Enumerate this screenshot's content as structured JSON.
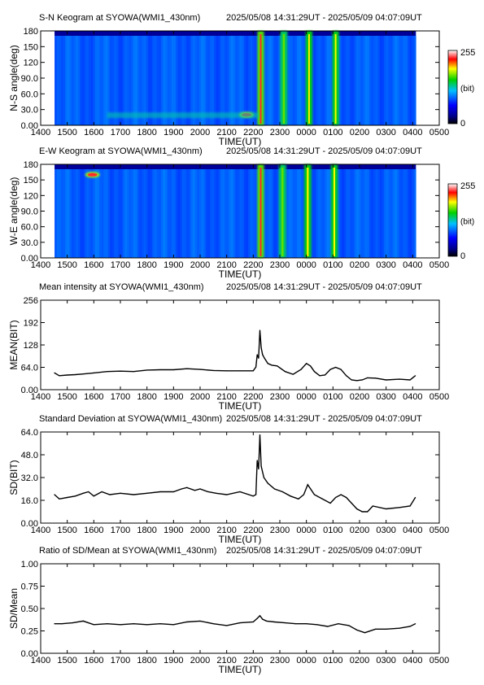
{
  "chart_data": [
    {
      "type": "heatmap",
      "title": "S-N Keogram at SYOWA(WMI1_430nm)",
      "time_range": "2025/05/08 14:31:29UT - 2025/05/09 04:07:09UT",
      "xlabel": "TIME(UT)",
      "ylabel": "N-S angle(deg)",
      "x_ticks": [
        "1400",
        "1500",
        "1600",
        "1700",
        "1800",
        "1900",
        "2000",
        "2100",
        "2200",
        "2300",
        "0000",
        "0100",
        "0200",
        "0300",
        "0400",
        "0500"
      ],
      "y_ticks": [
        "0.00",
        "30.0",
        "60.0",
        "90.0",
        "120",
        "150",
        "180"
      ],
      "ylim": [
        0,
        180
      ],
      "colorbar": {
        "min_label": "0",
        "max_label": "255",
        "unit_label": "(bit)",
        "range": [
          0,
          255
        ]
      },
      "features": [
        {
          "kind": "band",
          "hour": 22.28,
          "width": 0.12,
          "level": 1.0,
          "ymin": 0,
          "ymax": 180
        },
        {
          "kind": "band",
          "hour": 23.15,
          "width": 0.15,
          "level": 0.3,
          "ymin": 0,
          "ymax": 180
        },
        {
          "kind": "band",
          "hour": 24.1,
          "width": 0.12,
          "level": 0.6,
          "ymin": 0,
          "ymax": 180
        },
        {
          "kind": "band",
          "hour": 25.1,
          "width": 0.12,
          "level": 0.55,
          "ymin": 0,
          "ymax": 180
        },
        {
          "kind": "spot",
          "hour": 21.75,
          "angle": 20,
          "level": 1.0
        },
        {
          "kind": "arc",
          "angle": 20,
          "hour_start": 16.5,
          "hour_end": 22.2,
          "level": 0.4
        }
      ]
    },
    {
      "type": "heatmap",
      "title": "E-W Keogram at SYOWA(WMI1_430nm)",
      "time_range": "2025/05/08 14:31:29UT - 2025/05/09 04:07:09UT",
      "xlabel": "TIME(UT)",
      "ylabel": "W-E angle(deg)",
      "x_ticks": [
        "1400",
        "1500",
        "1600",
        "1700",
        "1800",
        "1900",
        "2000",
        "2100",
        "2200",
        "2300",
        "0000",
        "0100",
        "0200",
        "0300",
        "0400",
        "0500"
      ],
      "y_ticks": [
        "0.00",
        "30.0",
        "60.0",
        "90.0",
        "120",
        "150",
        "180"
      ],
      "ylim": [
        0,
        180
      ],
      "colorbar": {
        "min_label": "0",
        "max_label": "255",
        "unit_label": "(bit)",
        "range": [
          0,
          255
        ]
      },
      "features": [
        {
          "kind": "band",
          "hour": 22.28,
          "width": 0.12,
          "level": 1.0,
          "ymin": 0,
          "ymax": 180
        },
        {
          "kind": "band",
          "hour": 23.1,
          "width": 0.15,
          "level": 0.3,
          "ymin": 0,
          "ymax": 180
        },
        {
          "kind": "band",
          "hour": 24.05,
          "width": 0.14,
          "level": 0.6,
          "ymin": 0,
          "ymax": 180
        },
        {
          "kind": "band",
          "hour": 25.05,
          "width": 0.13,
          "level": 0.55,
          "ymin": 0,
          "ymax": 180
        },
        {
          "kind": "spot",
          "hour": 15.95,
          "angle": 160,
          "level": 1.0
        }
      ]
    },
    {
      "type": "line",
      "title": "Mean intensity at SYOWA(WMI1_430nm)",
      "time_range": "2025/05/08 14:31:29UT - 2025/05/09 04:07:09UT",
      "xlabel": "TIME(UT)",
      "ylabel": "MEAN(BIT)",
      "x_ticks": [
        "1400",
        "1500",
        "1600",
        "1700",
        "1800",
        "1900",
        "2000",
        "2100",
        "2200",
        "2300",
        "0000",
        "0100",
        "0200",
        "0300",
        "0400",
        "0500"
      ],
      "y_ticks": [
        "0.00",
        "64.0",
        "128",
        "192",
        "256"
      ],
      "ylim": [
        0,
        256
      ],
      "series": [
        {
          "x": [
            14.52,
            14.7,
            15.0,
            15.3,
            15.6,
            16.0,
            16.5,
            17.0,
            17.5,
            18.0,
            18.5,
            19.0,
            19.5,
            20.0,
            20.5,
            21.0,
            21.5,
            22.0,
            22.1,
            22.15,
            22.2,
            22.25,
            22.3,
            22.35,
            22.42,
            22.55,
            22.7,
            22.9,
            23.2,
            23.5,
            23.8,
            24.0,
            24.15,
            24.3,
            24.5,
            24.7,
            24.9,
            25.1,
            25.3,
            25.5,
            25.7,
            25.9,
            26.1,
            26.3,
            26.6,
            27.0,
            27.5,
            27.9,
            28.1
          ],
          "y": [
            48,
            40,
            42,
            43,
            45,
            48,
            52,
            53,
            52,
            56,
            57,
            57,
            60,
            58,
            55,
            54,
            54,
            54,
            65,
            100,
            90,
            170,
            120,
            100,
            90,
            75,
            70,
            68,
            52,
            44,
            58,
            75,
            68,
            52,
            40,
            42,
            58,
            64,
            58,
            40,
            28,
            26,
            28,
            34,
            33,
            28,
            30,
            28,
            40
          ]
        }
      ]
    },
    {
      "type": "line",
      "title": "Standard Deviation at SYOWA(WMI1_430nm)",
      "time_range": "2025/05/08 14:31:29UT - 2025/05/09 04:07:09UT",
      "xlabel": "TIME(UT)",
      "ylabel": "SD(BIT)",
      "x_ticks": [
        "1400",
        "1500",
        "1600",
        "1700",
        "1800",
        "1900",
        "2000",
        "2100",
        "2200",
        "2300",
        "0000",
        "0100",
        "0200",
        "0300",
        "0400",
        "0500"
      ],
      "y_ticks": [
        "0.00",
        "16.0",
        "32.0",
        "48.0",
        "64.0"
      ],
      "ylim": [
        0,
        64
      ],
      "series": [
        {
          "x": [
            14.52,
            14.7,
            15.0,
            15.3,
            15.6,
            15.8,
            16.0,
            16.3,
            16.6,
            17.0,
            17.5,
            18.0,
            18.5,
            19.0,
            19.3,
            19.5,
            19.8,
            20.0,
            20.3,
            20.6,
            21.0,
            21.5,
            22.0,
            22.1,
            22.15,
            22.2,
            22.25,
            22.3,
            22.4,
            22.55,
            22.8,
            23.1,
            23.4,
            23.7,
            23.9,
            24.05,
            24.3,
            24.6,
            24.9,
            25.1,
            25.3,
            25.5,
            25.7,
            25.9,
            26.1,
            26.3,
            26.5,
            27.0,
            27.5,
            27.9,
            28.1
          ],
          "y": [
            20,
            17,
            18,
            19,
            21,
            22,
            19,
            22,
            20,
            21,
            20,
            21,
            22,
            22,
            24,
            25,
            23,
            24,
            22,
            21,
            20,
            22,
            19,
            20,
            44,
            38,
            62,
            40,
            32,
            28,
            24,
            22,
            19,
            17,
            20,
            27,
            20,
            17,
            14,
            18,
            20,
            18,
            14,
            10,
            8,
            8,
            12,
            10,
            11,
            12,
            18
          ]
        }
      ]
    },
    {
      "type": "line",
      "title": "Ratio of SD/Mean at SYOWA(WMI1_430nm)",
      "time_range": "2025/05/08 14:31:29UT - 2025/05/09 04:07:09UT",
      "xlabel": "TIME(UT)",
      "ylabel": "SD/Mean",
      "x_ticks": [
        "1400",
        "1500",
        "1600",
        "1700",
        "1800",
        "1900",
        "2000",
        "2100",
        "2200",
        "2300",
        "0000",
        "0100",
        "0200",
        "0300",
        "0400",
        "0500"
      ],
      "y_ticks": [
        "0.00",
        "0.25",
        "0.50",
        "0.75",
        "1.00"
      ],
      "ylim": [
        0,
        1
      ],
      "series": [
        {
          "x": [
            14.52,
            14.8,
            15.2,
            15.6,
            16.0,
            16.5,
            17.0,
            17.5,
            18.0,
            18.5,
            19.0,
            19.5,
            20.0,
            20.5,
            21.0,
            21.5,
            22.0,
            22.15,
            22.25,
            22.35,
            22.5,
            22.8,
            23.2,
            23.6,
            24.0,
            24.4,
            24.8,
            25.2,
            25.6,
            25.9,
            26.2,
            26.6,
            27.0,
            27.5,
            27.9,
            28.1
          ],
          "y": [
            0.33,
            0.33,
            0.34,
            0.36,
            0.32,
            0.33,
            0.32,
            0.33,
            0.32,
            0.33,
            0.32,
            0.35,
            0.36,
            0.33,
            0.31,
            0.34,
            0.35,
            0.39,
            0.42,
            0.38,
            0.36,
            0.35,
            0.34,
            0.33,
            0.33,
            0.32,
            0.3,
            0.33,
            0.31,
            0.26,
            0.23,
            0.27,
            0.27,
            0.28,
            0.3,
            0.33
          ]
        }
      ]
    }
  ]
}
